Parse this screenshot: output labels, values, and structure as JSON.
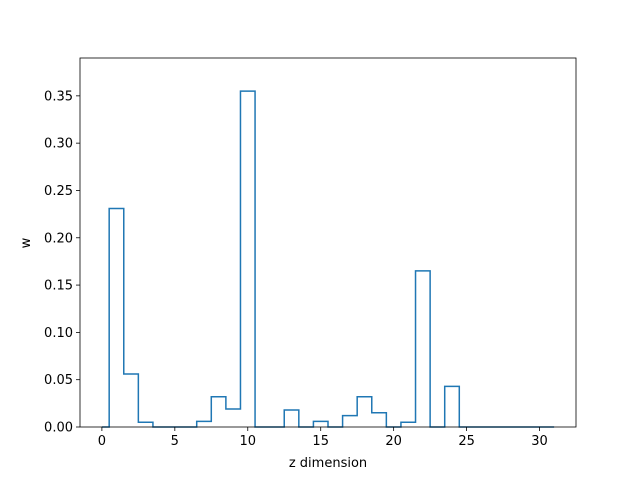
{
  "chart_data": {
    "type": "step",
    "title": "",
    "xlabel": "z dimension",
    "ylabel": "w",
    "xlim": [
      -1.5,
      32.5
    ],
    "ylim": [
      0,
      0.39
    ],
    "x_ticks": [
      0,
      5,
      10,
      15,
      20,
      25,
      30
    ],
    "y_ticks": [
      0.0,
      0.05,
      0.1,
      0.15,
      0.2,
      0.25,
      0.3,
      0.35
    ],
    "y_tick_labels": [
      "0.00",
      "0.05",
      "0.10",
      "0.15",
      "0.20",
      "0.25",
      "0.30",
      "0.35"
    ],
    "x_tick_labels": [
      "0",
      "5",
      "10",
      "15",
      "20",
      "25",
      "30"
    ],
    "grid": false,
    "step_where": "mid",
    "series": [
      {
        "color": "#1f77b4",
        "x": [
          0,
          1,
          2,
          3,
          4,
          5,
          6,
          7,
          8,
          9,
          10,
          11,
          12,
          13,
          14,
          15,
          16,
          17,
          18,
          19,
          20,
          21,
          22,
          23,
          24,
          25,
          26,
          27,
          28,
          29,
          30,
          31
        ],
        "values": [
          0.0,
          0.231,
          0.056,
          0.005,
          0.0,
          0.0,
          0.0,
          0.006,
          0.032,
          0.019,
          0.355,
          0.0,
          0.0,
          0.018,
          0.0,
          0.006,
          0.0,
          0.012,
          0.032,
          0.015,
          0.0,
          0.005,
          0.165,
          0.0,
          0.043,
          0.0,
          0.0,
          0.0,
          0.0,
          0.0,
          0.0,
          0.0
        ]
      }
    ]
  }
}
